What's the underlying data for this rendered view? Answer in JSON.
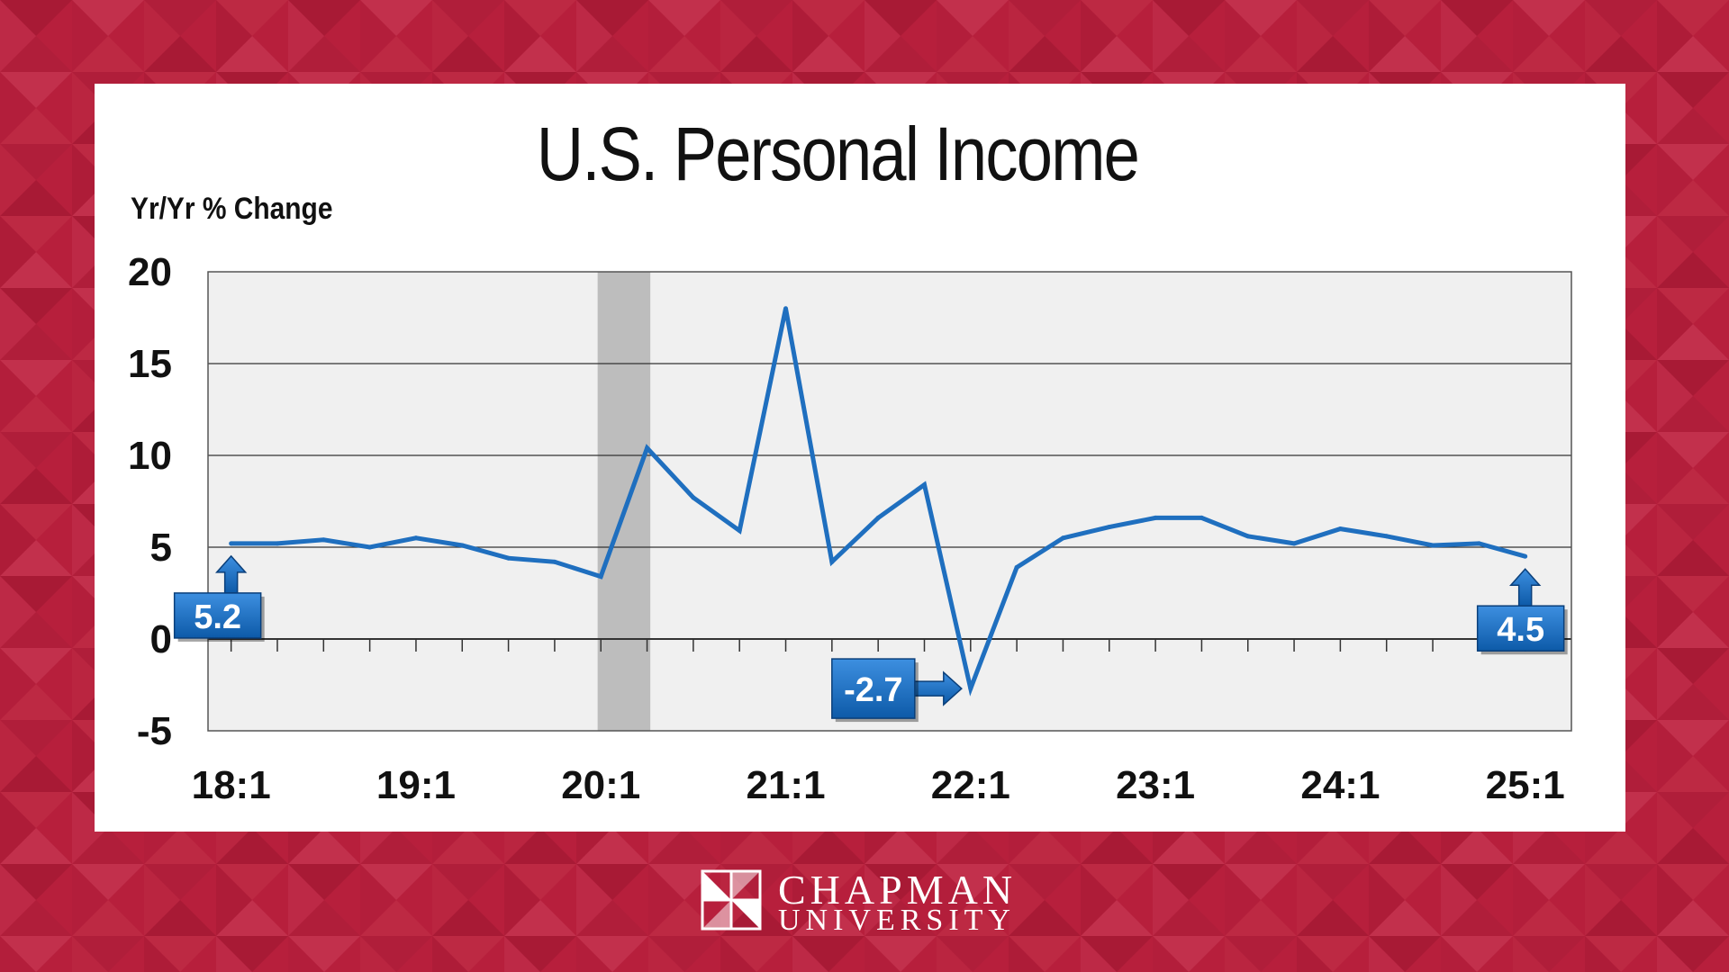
{
  "branding": {
    "line1": "CHAPMAN",
    "line2": "UNIVERSITY",
    "background_color": "#b71f3c",
    "logo_icon": "chapman-window-mark-icon"
  },
  "chart_data": {
    "type": "line",
    "title": "U.S. Personal Income",
    "ylabel": "Yr/Yr % Change",
    "xlabel": "",
    "ylim": [
      -5,
      20
    ],
    "y_ticks": [
      20,
      15,
      10,
      5,
      0,
      -5
    ],
    "x_tick_labels": [
      "18:1",
      "19:1",
      "20:1",
      "21:1",
      "22:1",
      "23:1",
      "24:1",
      "25:1"
    ],
    "x": [
      "18:1",
      "18:2",
      "18:3",
      "18:4",
      "19:1",
      "19:2",
      "19:3",
      "19:4",
      "20:1",
      "20:2",
      "20:3",
      "20:4",
      "21:1",
      "21:2",
      "21:3",
      "21:4",
      "22:1",
      "22:2",
      "22:3",
      "22:4",
      "23:1",
      "23:2",
      "23:3",
      "23:4",
      "24:1",
      "24:2",
      "24:3",
      "24:4",
      "25:1"
    ],
    "series": [
      {
        "color": "#1f6fbf",
        "values": [
          5.2,
          5.2,
          5.4,
          5.0,
          5.5,
          5.1,
          4.4,
          4.2,
          3.4,
          10.4,
          7.7,
          5.9,
          18.0,
          4.2,
          6.6,
          8.4,
          -2.7,
          3.9,
          5.5,
          6.1,
          6.6,
          6.6,
          5.6,
          5.2,
          6.0,
          5.6,
          5.1,
          5.2,
          4.5
        ]
      }
    ],
    "recession_shading": {
      "from": "20:1",
      "to": "20:2",
      "color": "#bdbdbd"
    },
    "grid": true,
    "plot_background": "#f0f0f0",
    "callouts": [
      {
        "label": "5.2",
        "x": "18:1",
        "value": 5.2,
        "arrow": "up"
      },
      {
        "label": "-2.7",
        "x": "22:1",
        "value": -2.7,
        "arrow": "right"
      },
      {
        "label": "4.5",
        "x": "25:1",
        "value": 4.5,
        "arrow": "up"
      }
    ]
  }
}
